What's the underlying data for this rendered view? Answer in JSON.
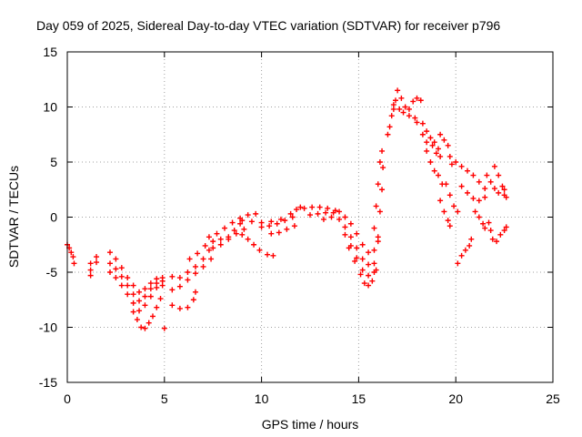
{
  "chart_data": {
    "type": "scatter",
    "title": "Day 059 of 2025, Sidereal Day-to-day VTEC variation (SDTVAR) for receiver p796",
    "xlabel": "GPS time / hours",
    "ylabel": "SDTVAR / TECUs",
    "xlim": [
      0,
      25
    ],
    "ylim": [
      -15,
      15
    ],
    "xticks": [
      "0",
      "5",
      "10",
      "15",
      "20",
      "25"
    ],
    "yticks": [
      "-15",
      "-10",
      "-5",
      "0",
      "5",
      "10",
      "15"
    ],
    "grid": true,
    "marker": "+",
    "color": "#ff0000",
    "series": [
      {
        "points": [
          [
            0.0,
            -2.5
          ],
          [
            0.1,
            -2.8
          ],
          [
            0.2,
            -3.2
          ],
          [
            0.3,
            -3.6
          ],
          [
            0.35,
            -4.2
          ],
          [
            1.2,
            -4.2
          ],
          [
            1.2,
            -4.8
          ],
          [
            1.2,
            -5.3
          ],
          [
            1.5,
            -3.6
          ],
          [
            1.5,
            -4.1
          ],
          [
            2.2,
            -3.2
          ],
          [
            2.5,
            -3.8
          ],
          [
            2.8,
            -4.6
          ],
          [
            3.1,
            -5.5
          ],
          [
            3.4,
            -6.2
          ],
          [
            3.7,
            -6.8
          ],
          [
            4.0,
            -6.5
          ],
          [
            4.3,
            -6.0
          ],
          [
            4.6,
            -5.6
          ],
          [
            4.9,
            -5.5
          ],
          [
            2.2,
            -4.2
          ],
          [
            2.5,
            -4.7
          ],
          [
            2.8,
            -5.4
          ],
          [
            3.1,
            -6.2
          ],
          [
            3.4,
            -7.0
          ],
          [
            3.7,
            -7.6
          ],
          [
            4.0,
            -7.2
          ],
          [
            4.3,
            -6.5
          ],
          [
            4.6,
            -6.0
          ],
          [
            4.9,
            -5.8
          ],
          [
            2.2,
            -5.0
          ],
          [
            2.5,
            -5.5
          ],
          [
            2.8,
            -6.2
          ],
          [
            3.1,
            -7.0
          ],
          [
            3.4,
            -7.8
          ],
          [
            3.7,
            -8.5
          ],
          [
            4.0,
            -8.0
          ],
          [
            4.3,
            -7.2
          ],
          [
            4.6,
            -6.4
          ],
          [
            4.9,
            -6.2
          ],
          [
            3.4,
            -8.6
          ],
          [
            3.6,
            -9.3
          ],
          [
            3.8,
            -10.0
          ],
          [
            4.0,
            -10.1
          ],
          [
            4.2,
            -9.6
          ],
          [
            4.4,
            -9.0
          ],
          [
            4.6,
            -8.2
          ],
          [
            4.8,
            -7.4
          ],
          [
            5.0,
            -10.1
          ],
          [
            5.4,
            -5.4
          ],
          [
            5.8,
            -5.5
          ],
          [
            6.2,
            -5.0
          ],
          [
            6.6,
            -4.5
          ],
          [
            7.0,
            -3.8
          ],
          [
            7.3,
            -3.0
          ],
          [
            5.4,
            -6.6
          ],
          [
            5.8,
            -6.3
          ],
          [
            6.2,
            -5.7
          ],
          [
            6.6,
            -5.1
          ],
          [
            7.0,
            -4.5
          ],
          [
            7.4,
            -3.8
          ],
          [
            5.4,
            -8.0
          ],
          [
            5.8,
            -8.3
          ],
          [
            6.2,
            -8.2
          ],
          [
            6.5,
            -7.5
          ],
          [
            6.6,
            -6.8
          ],
          [
            6.3,
            -3.8
          ],
          [
            6.7,
            -3.3
          ],
          [
            7.1,
            -2.6
          ],
          [
            7.5,
            -2.2
          ],
          [
            7.9,
            -2.0
          ],
          [
            8.3,
            -1.8
          ],
          [
            8.6,
            -1.2
          ],
          [
            8.9,
            -0.6
          ],
          [
            7.3,
            -1.8
          ],
          [
            7.7,
            -1.5
          ],
          [
            8.1,
            -1.0
          ],
          [
            8.5,
            -0.5
          ],
          [
            8.9,
            -0.1
          ],
          [
            9.3,
            0.2
          ],
          [
            9.7,
            0.3
          ],
          [
            7.5,
            -2.8
          ],
          [
            7.9,
            -2.5
          ],
          [
            8.3,
            -2.0
          ],
          [
            8.7,
            -1.5
          ],
          [
            9.1,
            -1.1
          ],
          [
            9.0,
            -1.6
          ],
          [
            9.3,
            -2.0
          ],
          [
            9.6,
            -2.5
          ],
          [
            9.9,
            -3.0
          ],
          [
            10.3,
            -3.4
          ],
          [
            10.6,
            -3.5
          ],
          [
            9.0,
            -0.3
          ],
          [
            9.5,
            -0.4
          ],
          [
            10.0,
            -0.5
          ],
          [
            10.5,
            -0.4
          ],
          [
            11.0,
            -0.2
          ],
          [
            11.5,
            0.3
          ],
          [
            11.8,
            0.7
          ],
          [
            12.0,
            0.9
          ],
          [
            10.0,
            -0.9
          ],
          [
            10.4,
            -0.8
          ],
          [
            10.8,
            -0.6
          ],
          [
            11.2,
            -0.3
          ],
          [
            11.6,
            0.0
          ],
          [
            10.5,
            -1.5
          ],
          [
            10.9,
            -1.4
          ],
          [
            11.3,
            -1.1
          ],
          [
            11.7,
            -0.8
          ],
          [
            12.2,
            0.8
          ],
          [
            12.6,
            0.9
          ],
          [
            13.0,
            0.9
          ],
          [
            13.4,
            0.8
          ],
          [
            13.8,
            0.6
          ],
          [
            12.5,
            0.2
          ],
          [
            12.9,
            0.3
          ],
          [
            13.3,
            0.4
          ],
          [
            13.7,
            0.4
          ],
          [
            13.2,
            -0.2
          ],
          [
            13.6,
            0.0
          ],
          [
            14.0,
            0.5
          ],
          [
            14.3,
            0.0
          ],
          [
            14.6,
            -0.6
          ],
          [
            14.9,
            -1.5
          ],
          [
            15.2,
            -2.5
          ],
          [
            15.5,
            -3.2
          ],
          [
            15.8,
            -3.0
          ],
          [
            16.0,
            -2.2
          ],
          [
            14.0,
            -0.2
          ],
          [
            14.3,
            -0.9
          ],
          [
            14.6,
            -1.8
          ],
          [
            14.9,
            -2.8
          ],
          [
            15.2,
            -3.8
          ],
          [
            15.5,
            -4.3
          ],
          [
            15.8,
            -4.2
          ],
          [
            14.3,
            -1.6
          ],
          [
            14.6,
            -2.6
          ],
          [
            14.9,
            -3.7
          ],
          [
            15.2,
            -4.8
          ],
          [
            15.5,
            -5.3
          ],
          [
            15.8,
            -5.0
          ],
          [
            14.5,
            -2.8
          ],
          [
            14.8,
            -4.0
          ],
          [
            15.1,
            -5.2
          ],
          [
            15.3,
            -6.0
          ],
          [
            15.5,
            -6.2
          ],
          [
            15.7,
            -5.8
          ],
          [
            15.9,
            -4.8
          ],
          [
            15.8,
            -1.0
          ],
          [
            15.9,
            1.0
          ],
          [
            16.0,
            3.0
          ],
          [
            16.1,
            5.0
          ],
          [
            16.2,
            6.0
          ],
          [
            16.0,
            -1.8
          ],
          [
            16.1,
            0.5
          ],
          [
            16.2,
            2.5
          ],
          [
            16.25,
            4.5
          ],
          [
            16.5,
            7.5
          ],
          [
            16.6,
            8.2
          ],
          [
            16.7,
            9.2
          ],
          [
            16.8,
            10.2
          ],
          [
            16.9,
            10.6
          ],
          [
            17.0,
            11.5
          ],
          [
            17.2,
            10.8
          ],
          [
            17.4,
            10.0
          ],
          [
            17.6,
            9.8
          ],
          [
            17.8,
            10.5
          ],
          [
            18.0,
            10.8
          ],
          [
            18.2,
            10.6
          ],
          [
            16.8,
            9.8
          ],
          [
            17.1,
            9.8
          ],
          [
            17.3,
            9.5
          ],
          [
            17.6,
            9.2
          ],
          [
            17.9,
            9.0
          ],
          [
            18.0,
            8.6
          ],
          [
            18.3,
            8.5
          ],
          [
            18.5,
            7.8
          ],
          [
            18.7,
            7.2
          ],
          [
            18.9,
            6.8
          ],
          [
            19.1,
            6.2
          ],
          [
            18.3,
            7.5
          ],
          [
            18.5,
            6.8
          ],
          [
            18.8,
            6.5
          ],
          [
            19.0,
            5.8
          ],
          [
            19.2,
            5.5
          ],
          [
            18.5,
            6.0
          ],
          [
            18.7,
            5.0
          ],
          [
            18.9,
            4.2
          ],
          [
            19.1,
            3.8
          ],
          [
            19.3,
            3.0
          ],
          [
            19.2,
            7.5
          ],
          [
            19.4,
            7.0
          ],
          [
            19.6,
            6.5
          ],
          [
            19.7,
            5.5
          ],
          [
            19.8,
            4.8
          ],
          [
            19.5,
            3.0
          ],
          [
            19.7,
            2.0
          ],
          [
            19.9,
            1.0
          ],
          [
            20.1,
            0.5
          ],
          [
            19.2,
            1.5
          ],
          [
            19.4,
            0.5
          ],
          [
            19.6,
            -0.3
          ],
          [
            19.7,
            -0.8
          ],
          [
            20.0,
            5.0
          ],
          [
            20.3,
            4.6
          ],
          [
            20.6,
            4.2
          ],
          [
            20.9,
            3.8
          ],
          [
            21.2,
            3.2
          ],
          [
            21.5,
            2.6
          ],
          [
            20.3,
            2.8
          ],
          [
            20.6,
            2.2
          ],
          [
            20.9,
            1.7
          ],
          [
            21.2,
            1.5
          ],
          [
            21.5,
            1.8
          ],
          [
            20.1,
            -4.2
          ],
          [
            20.3,
            -3.5
          ],
          [
            20.5,
            -3.0
          ],
          [
            20.7,
            -2.6
          ],
          [
            20.8,
            -2.0
          ],
          [
            21.0,
            0.5
          ],
          [
            21.2,
            0.0
          ],
          [
            21.4,
            -0.6
          ],
          [
            21.5,
            -1.0
          ],
          [
            21.6,
            3.8
          ],
          [
            21.8,
            3.2
          ],
          [
            22.0,
            2.6
          ],
          [
            22.2,
            2.2
          ],
          [
            22.5,
            2.0
          ],
          [
            22.6,
            1.8
          ],
          [
            21.7,
            -0.5
          ],
          [
            21.8,
            -1.2
          ],
          [
            21.9,
            -2.0
          ],
          [
            22.1,
            -2.2
          ],
          [
            22.3,
            -1.6
          ],
          [
            22.5,
            -1.2
          ],
          [
            22.6,
            -0.9
          ],
          [
            22.0,
            4.6
          ],
          [
            22.2,
            3.8
          ],
          [
            22.4,
            2.8
          ],
          [
            22.5,
            2.5
          ]
        ]
      }
    ]
  }
}
